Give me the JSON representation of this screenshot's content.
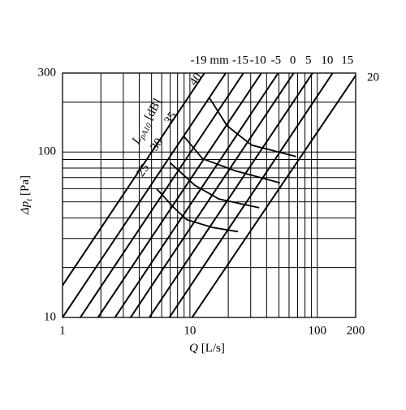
{
  "chart_data": {
    "type": "line",
    "x_label": "Q",
    "x_unit": "[L/s]",
    "y_label": "Δp",
    "y_label_sub": "t",
    "y_unit": "[Pa]",
    "noise_label": "L",
    "noise_label_sub": "pA10",
    "noise_unit": "[dB]",
    "log_x": true,
    "log_y": true,
    "grid": true,
    "color": "#000000",
    "xlim": [
      1,
      200
    ],
    "ylim": [
      10,
      300
    ],
    "xticks": [
      1,
      10,
      100,
      200
    ],
    "yticks": [
      10,
      100,
      300
    ],
    "xminor": [
      2,
      3,
      4,
      5,
      6,
      7,
      8,
      9,
      20,
      30,
      40,
      50,
      60,
      70,
      80,
      90
    ],
    "yminor": [
      20,
      30,
      40,
      50,
      60,
      70,
      80,
      90,
      200
    ],
    "series": [
      {
        "name": "-19 mm",
        "x": [
          1,
          13
        ],
        "values": [
          15.6,
          300
        ]
      },
      {
        "name": "-15",
        "x": [
          1,
          19.1
        ],
        "values": [
          10,
          300
        ]
      },
      {
        "name": "-10",
        "x": [
          1.38,
          26.3
        ],
        "values": [
          10,
          300
        ]
      },
      {
        "name": "-5",
        "x": [
          1.9,
          36.4
        ],
        "values": [
          10,
          300
        ]
      },
      {
        "name": "0",
        "x": [
          2.58,
          49.3
        ],
        "values": [
          10,
          300
        ]
      },
      {
        "name": "5",
        "x": [
          3.42,
          65.3
        ],
        "values": [
          10,
          300
        ]
      },
      {
        "name": "10",
        "x": [
          4.8,
          91.7
        ],
        "values": [
          10,
          300
        ]
      },
      {
        "name": "15",
        "x": [
          6.9,
          132
        ],
        "values": [
          10,
          300
        ]
      },
      {
        "name": "20",
        "x": [
          10.4,
          200
        ],
        "values": [
          10,
          290
        ]
      }
    ],
    "noise_series": [
      {
        "name": "25",
        "x": [
          5.47,
          7.5,
          9.45,
          15,
          23.8
        ],
        "values": [
          60,
          46,
          39,
          35,
          33
        ]
      },
      {
        "name": "30",
        "x": [
          7.0,
          10.9,
          16.9,
          35
        ],
        "values": [
          86,
          63,
          52,
          46
        ]
      },
      {
        "name": "35",
        "x": [
          9.0,
          12.6,
          22.7,
          50.9
        ],
        "values": [
          124,
          91,
          77,
          65
        ]
      },
      {
        "name": "40",
        "x": [
          14.2,
          19.6,
          30.5,
          68
        ],
        "values": [
          213,
          144,
          110,
          94
        ]
      }
    ]
  }
}
